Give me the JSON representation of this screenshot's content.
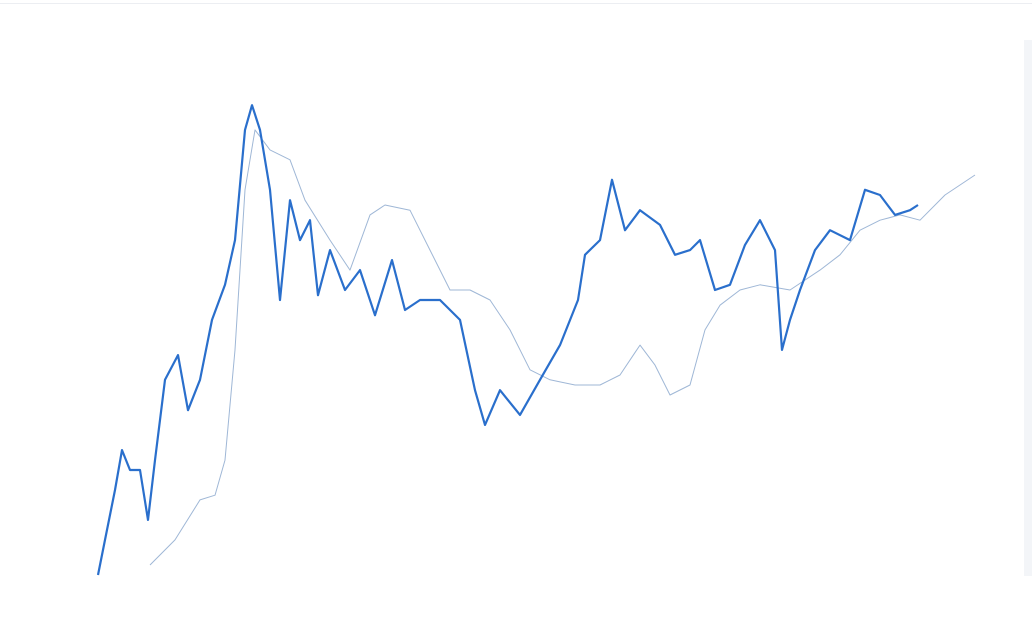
{
  "chart_data": {
    "type": "line",
    "xlim": [
      0,
      877
    ],
    "ylim": [
      0,
      100
    ],
    "grid": false,
    "series": [
      {
        "color": "#2a6fcc",
        "width": 2.2,
        "x": [
          0,
          7,
          17,
          24,
          32,
          42,
          50,
          57,
          67,
          80,
          90,
          102,
          114,
          127,
          137,
          147,
          154,
          162,
          172,
          182,
          192,
          202,
          212,
          220,
          232,
          247,
          262,
          277,
          294,
          307,
          322,
          342,
          362,
          377,
          387,
          402,
          422,
          442,
          462,
          480,
          487,
          502,
          514,
          527,
          542,
          562,
          577,
          592,
          602,
          617,
          632,
          647,
          662,
          677,
          684,
          692,
          702,
          717,
          732,
          752,
          767,
          782,
          797,
          812,
          820
        ],
        "values": [
          0,
          7.4,
          17.9,
          26.3,
          22.1,
          22.1,
          11.6,
          24.2,
          41.1,
          46.3,
          34.7,
          41.1,
          53.7,
          61.1,
          70.5,
          93.7,
          98.9,
          93.7,
          81.1,
          57.9,
          78.9,
          70.5,
          74.7,
          58.9,
          68.4,
          60,
          64.2,
          54.7,
          66.3,
          55.8,
          57.9,
          57.9,
          53.7,
          38.9,
          31.6,
          38.9,
          33.7,
          41.1,
          48.4,
          57.9,
          67.4,
          70.5,
          83.2,
          72.6,
          76.8,
          73.7,
          67.4,
          68.4,
          70.5,
          60,
          61.1,
          69.5,
          74.7,
          68.4,
          47.4,
          53.7,
          60,
          68.4,
          72.6,
          70.5,
          81.1,
          80,
          75.8,
          76.8,
          77.9
        ]
      },
      {
        "color": "#9fb7d6",
        "width": 1,
        "x": [
          52,
          77,
          102,
          117,
          127,
          137,
          147,
          157,
          172,
          192,
          207,
          232,
          252,
          272,
          287,
          312,
          332,
          352,
          372,
          392,
          412,
          432,
          452,
          477,
          502,
          522,
          542,
          557,
          572,
          592,
          607,
          622,
          642,
          662,
          692,
          722,
          742,
          762,
          782,
          802,
          822,
          847,
          877
        ],
        "values": [
          2.1,
          7.4,
          15.8,
          16.8,
          24.2,
          47.4,
          81.1,
          93.7,
          89.5,
          87.4,
          78.9,
          70.5,
          64.2,
          75.8,
          77.9,
          76.8,
          68.4,
          60,
          60,
          57.9,
          51.6,
          43.2,
          41.1,
          40,
          40,
          42.1,
          48.4,
          44.2,
          37.9,
          40,
          51.6,
          56.8,
          60,
          61.1,
          60,
          64.2,
          67.4,
          72.6,
          74.7,
          75.8,
          74.7,
          80,
          84.2
        ]
      }
    ]
  }
}
